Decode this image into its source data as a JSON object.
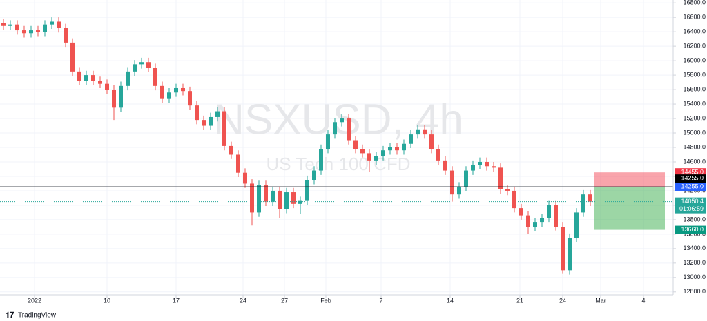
{
  "chart_data": {
    "type": "candlestick",
    "title": "NSXUSD, 4h",
    "subtitle": "US Tech 100 CFD",
    "brand": "TradingView",
    "up_color": "#26a69a",
    "down_color": "#ef5350",
    "grid": true,
    "x": [
      0.5,
      1.5,
      2.5,
      3.5,
      4.5,
      5.5,
      6.5,
      7.5,
      8.5,
      9.5,
      10.5,
      11.5,
      12.5,
      13.5,
      14.5,
      15.5,
      16.5,
      17.5,
      18.5,
      19.5,
      20.5,
      21.5,
      22.5,
      23.5,
      24.5,
      25.5,
      26.5,
      27.5,
      28.5,
      29.5,
      30.5,
      31.5,
      32.5,
      33.5,
      34.5,
      35.5,
      36.5,
      37.5,
      38.5,
      39.5,
      40.5,
      41.5,
      42.5,
      43.5,
      44.5,
      45.5,
      46.5,
      47.5,
      48.5,
      49.5,
      50.5,
      51.5,
      52.5,
      53.5,
      54.5,
      55.5,
      56.5,
      57.5,
      58.5,
      59.5,
      60.5,
      61.5,
      62.5,
      63.5,
      64.5,
      65.5,
      66.5,
      67.5,
      68.5,
      69.5,
      70.5,
      71.5,
      72.5,
      73.5,
      74.5,
      75.5,
      76.5,
      77.5,
      78.5,
      79.5,
      80.5,
      81.5,
      82.5,
      83.5,
      84.5,
      85.5
    ],
    "open": [
      16520,
      16480,
      16500,
      16420,
      16380,
      16420,
      16400,
      16500,
      16540,
      16450,
      16250,
      15850,
      15720,
      15800,
      15720,
      15680,
      15600,
      15350,
      15650,
      15850,
      15950,
      15980,
      15900,
      15650,
      15480,
      15560,
      15620,
      15580,
      15380,
      15180,
      15100,
      15220,
      15300,
      14820,
      14700,
      14450,
      14300,
      13900,
      14280,
      14050,
      14200,
      13950,
      14180,
      14020,
      14060,
      14350,
      14480,
      14780,
      14980,
      15150,
      15200,
      14900,
      14780,
      14720,
      14620,
      14680,
      14760,
      14800,
      14760,
      14850,
      14980,
      15050,
      14980,
      14780,
      14620,
      14480,
      14150,
      14260,
      14480,
      14560,
      14600,
      14540,
      14520,
      14220,
      14200,
      13960,
      13860,
      13700,
      13760,
      13820,
      14000,
      13700,
      13100,
      13550,
      13900,
      14150
    ],
    "high": [
      16580,
      16560,
      16560,
      16480,
      16480,
      16480,
      16560,
      16600,
      16600,
      16510,
      16310,
      15910,
      15860,
      15860,
      15780,
      15740,
      15660,
      15710,
      15910,
      16010,
      16040,
      16040,
      15960,
      15710,
      15620,
      15680,
      15680,
      15640,
      15440,
      15240,
      15280,
      15360,
      15360,
      14880,
      14760,
      14510,
      14360,
      14340,
      14340,
      14260,
      14260,
      14240,
      14240,
      14120,
      14410,
      14540,
      14840,
      15040,
      15210,
      15260,
      15260,
      14960,
      14840,
      14780,
      14740,
      14820,
      14860,
      14860,
      14910,
      15040,
      15110,
      15110,
      15040,
      14840,
      14680,
      14540,
      14320,
      14540,
      14620,
      14660,
      14660,
      14600,
      14580,
      14280,
      14260,
      14020,
      13920,
      13820,
      13880,
      14060,
      14060,
      13760,
      13610,
      13960,
      14210,
      14210
    ],
    "low": [
      16420,
      16420,
      16360,
      16320,
      16320,
      16340,
      16340,
      16440,
      16390,
      16190,
      15790,
      15660,
      15660,
      15660,
      15620,
      15540,
      15180,
      15290,
      15590,
      15790,
      15890,
      15840,
      15590,
      15420,
      15420,
      15500,
      15520,
      15320,
      15120,
      15040,
      15040,
      15160,
      14760,
      14640,
      14390,
      14240,
      13720,
      13840,
      13990,
      13990,
      13820,
      13890,
      13960,
      13880,
      14000,
      14290,
      14420,
      14720,
      14920,
      15090,
      14840,
      14720,
      14660,
      14460,
      14560,
      14620,
      14700,
      14700,
      14700,
      14790,
      14920,
      14920,
      14720,
      14560,
      14420,
      14050,
      14090,
      14200,
      14420,
      14500,
      14480,
      14460,
      14160,
      14140,
      13900,
      13800,
      13600,
      13640,
      13700,
      13760,
      13650,
      13050,
      13040,
      13490,
      13840,
      13990
    ],
    "close": [
      16480,
      16500,
      16420,
      16380,
      16420,
      16400,
      16500,
      16540,
      16450,
      16250,
      15850,
      15720,
      15800,
      15720,
      15680,
      15600,
      15350,
      15650,
      15850,
      15950,
      15980,
      15900,
      15650,
      15480,
      15560,
      15620,
      15580,
      15380,
      15180,
      15100,
      15220,
      15300,
      14820,
      14700,
      14450,
      14300,
      13900,
      14280,
      14050,
      14200,
      13950,
      14180,
      14020,
      14060,
      14350,
      14480,
      14780,
      14980,
      15150,
      15200,
      14900,
      14780,
      14720,
      14620,
      14680,
      14760,
      14800,
      14760,
      14850,
      14980,
      15050,
      14980,
      14780,
      14620,
      14480,
      14150,
      14260,
      14480,
      14560,
      14600,
      14540,
      14520,
      14220,
      14200,
      13960,
      13860,
      13700,
      13760,
      13820,
      14000,
      13700,
      13100,
      13550,
      13900,
      14150,
      14050
    ],
    "xlim": [
      0,
      97.5
    ],
    "xticks": [
      {
        "value": 5,
        "label": "2022"
      },
      {
        "value": 15.5,
        "label": "10"
      },
      {
        "value": 25.5,
        "label": "17"
      },
      {
        "value": 35.2,
        "label": "24"
      },
      {
        "value": 41.2,
        "label": "27"
      },
      {
        "value": 47.2,
        "label": "Feb"
      },
      {
        "value": 55.2,
        "label": "7"
      },
      {
        "value": 65.2,
        "label": "14"
      },
      {
        "value": 75.3,
        "label": "21"
      },
      {
        "value": 81.5,
        "label": "24"
      },
      {
        "value": 87,
        "label": "Mar"
      },
      {
        "value": 93.2,
        "label": "4"
      }
    ],
    "ylim": [
      12760,
      16840
    ],
    "yticks": [
      {
        "value": 12800,
        "label": "12800.0"
      },
      {
        "value": 13000,
        "label": "13000.0"
      },
      {
        "value": 13200,
        "label": "13200.0"
      },
      {
        "value": 13400,
        "label": "13400.0"
      },
      {
        "value": 13600,
        "label": "13600.0"
      },
      {
        "value": 13800,
        "label": "13800.0"
      },
      {
        "value": 14000,
        "label": "14000.0"
      },
      {
        "value": 14200,
        "label": "14200.0"
      },
      {
        "value": 14400,
        "label": "14400.0"
      },
      {
        "value": 14600,
        "label": "14600.0"
      },
      {
        "value": 14800,
        "label": "14800.0"
      },
      {
        "value": 15000,
        "label": "15000.0"
      },
      {
        "value": 15200,
        "label": "15200.0"
      },
      {
        "value": 15400,
        "label": "15400.0"
      },
      {
        "value": 15600,
        "label": "15600.0"
      },
      {
        "value": 15800,
        "label": "15800.0"
      },
      {
        "value": 16000,
        "label": "16000.0"
      },
      {
        "value": 16200,
        "label": "16200.0"
      },
      {
        "value": 16400,
        "label": "16400.0"
      },
      {
        "value": 16600,
        "label": "16600.0"
      },
      {
        "value": 16800,
        "label": "16800.0"
      }
    ],
    "horizontal_line": {
      "value": 14255,
      "label": "14255.0",
      "color": "#2962ff"
    },
    "price_line": {
      "value": 14050.4,
      "label": "14050.4",
      "countdown": "01:06:59",
      "color": "#26a69a"
    },
    "position": {
      "x_start": 86,
      "x_end": 96.3,
      "entry": 14255,
      "entry_label": "14255.0",
      "stop": 14455,
      "stop_label": "14455.0",
      "target": 13660,
      "target_label": "13660.0"
    }
  }
}
